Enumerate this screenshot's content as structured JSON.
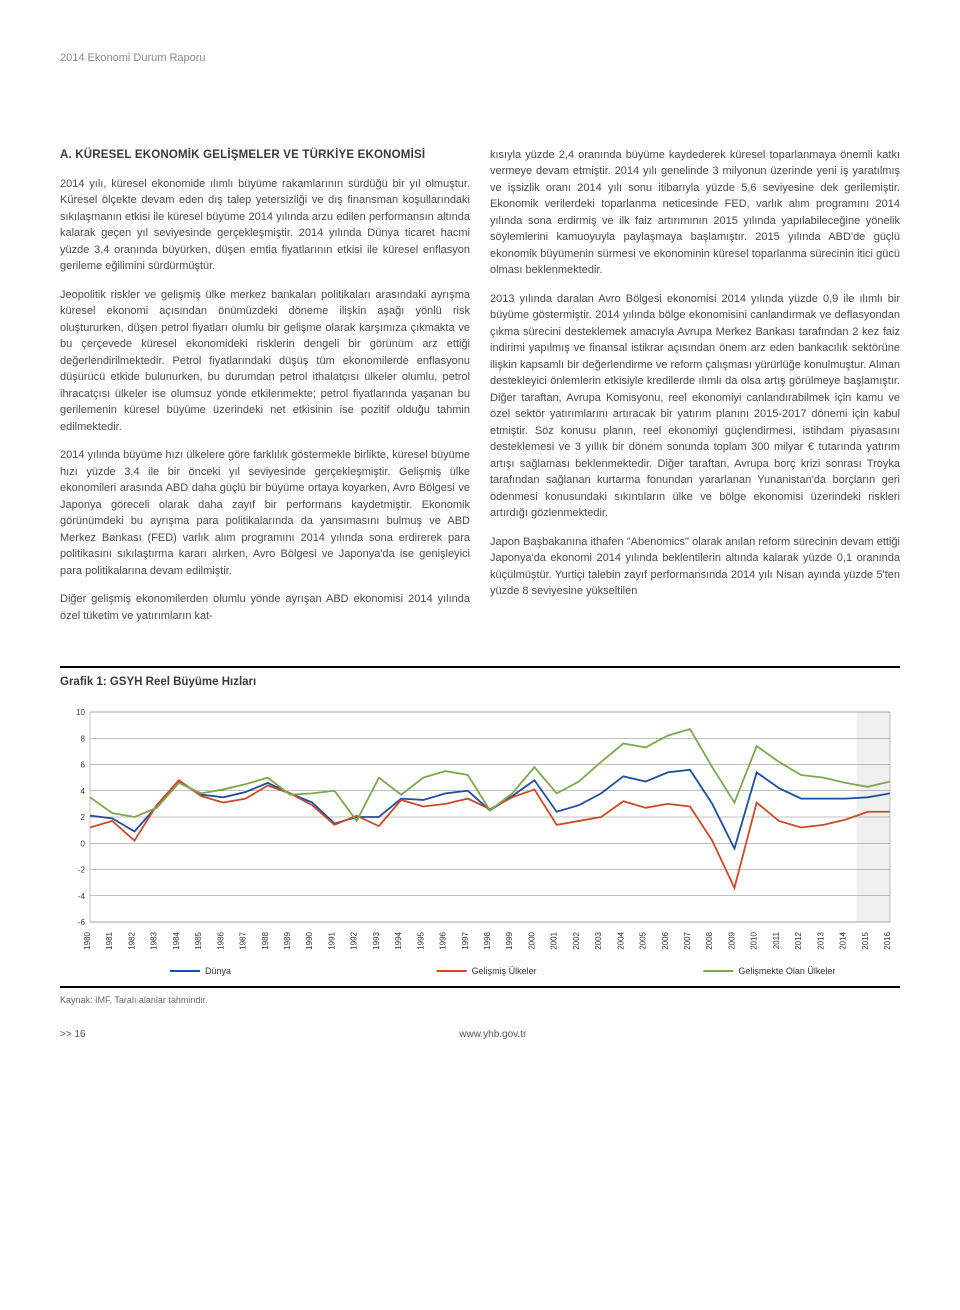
{
  "header": "2014 Ekonomi Durum Raporu",
  "sectionTitle": "A. KÜRESEL EKONOMİK GELİŞMELER VE TÜRKİYE EKONOMİSİ",
  "leftCol": [
    "2014 yılı, küresel ekonomide ılımlı büyüme rakamlarının sürdüğü bir yıl olmuştur. Küresel ölçekte devam eden dış talep yetersizliği ve dış finansman koşullarındaki sıkılaşmanın etkisi ile küresel büyüme 2014 yılında arzu edilen performansın altında kalarak geçen yıl seviyesinde gerçekleşmiştir. 2014 yılında Dünya ticaret hacmi yüzde 3,4 oranında büyürken, düşen emtia fiyatlarının etkisi ile küresel enflasyon gerileme eğilimini sürdürmüştür.",
    "Jeopolitik riskler ve gelişmiş ülke merkez bankaları politikaları arasındaki ayrışma küresel ekonomi açısından önümüzdeki döneme ilişkin aşağı yönlü risk oluştururken, düşen petrol fiyatları olumlu bir gelişme olarak karşımıza çıkmakta ve bu çerçevede küresel ekonomideki risklerin dengeli bir görünüm arz ettiği değerlendirilmektedir. Petrol fiyatlarındaki düşüş tüm ekonomilerde enflasyonu düşürücü etkide bulunurken, bu durumdan petrol ithalatçısı ülkeler olumlu, petrol ihracatçısı ülkeler ise olumsuz yönde etkilenmekte; petrol fiyatlarında yaşanan bu gerilemenin küresel büyüme üzerindeki net etkisinin ise pozitif olduğu tahmin edilmektedir.",
    "2014 yılında büyüme hızı ülkelere göre farklılık göstermekle birlikte, küresel büyüme hızı yüzde 3,4 ile bir önceki yıl seviyesinde gerçekleşmiştir. Gelişmiş ülke ekonomileri arasında ABD daha güçlü bir büyüme ortaya koyarken, Avro Bölgesi ve Japonya göreceli olarak daha zayıf bir performans kaydetmiştir. Ekonomik görünümdeki bu ayrışma para politikalarında da yansımasını bulmuş ve ABD Merkez Bankası (FED) varlık alım programını 2014 yılında sona erdirerek para politikasını sıkılaştırma kararı alırken, Avro Bölgesi ve Japonya'da ise genişleyici para politikalarına devam edilmiştir.",
    "Diğer gelişmiş ekonomilerden olumlu yönde ayrışan ABD ekonomisi 2014 yılında özel tüketim ve yatırımların kat-"
  ],
  "rightCol": [
    "kısıyla yüzde 2,4 oranında büyüme kaydederek küresel toparlanmaya önemli katkı vermeye devam etmiştir. 2014 yılı genelinde 3 milyonun üzerinde yeni iş yaratılmış ve işsizlik oranı 2014 yılı sonu itibarıyla yüzde 5,6 seviyesine dek gerilemiştir. Ekonomik verilerdeki toparlanma neticesinde FED, varlık alım programını 2014 yılında sona erdirmiş ve ilk faiz artırımının 2015 yılında yapılabileceğine yönelik söylemlerini kamuoyuyla paylaşmaya başlamıştır. 2015 yılında ABD'de güçlü ekonomik büyümenin sürmesi ve ekonominin küresel toparlanma sürecinin itici gücü olması beklenmektedir.",
    "2013 yılında daralan Avro Bölgesi ekonomisi 2014 yılında yüzde 0,9 ile ılımlı bir büyüme göstermiştir. 2014 yılında bölge ekonomisini canlandırmak ve deflasyondan çıkma sürecini desteklemek amacıyla Avrupa Merkez Bankası tarafından 2 kez faiz indirimi yapılmış ve finansal istikrar açısından önem arz eden bankacılık sektörüne ilişkin kapsamlı bir değerlendirme ve reform çalışması yürürlüğe konulmuştur. Alınan destekleyici önlemlerin etkisiyle kredilerde ılımlı da olsa artış görülmeye başlamıştır. Diğer taraftan, Avrupa Komisyonu, reel ekonomiyi canlandırabilmek için kamu ve özel sektör yatırımlarını artıracak bir yatırım planını 2015-2017 dönemi için kabul etmiştir. Söz konusu planın, reel ekonomiyi güçlendirmesi, istihdam piyasasını desteklemesi ve 3 yıllık bir dönem sonunda toplam 300 milyar € tutarında yatırım artışı sağlaması beklenmektedir. Diğer taraftan, Avrupa borç krizi sonrası Troyka tarafından sağlanan kurtarma fonundan yararlanan Yunanistan'da borçların geri ödenmesi konusundaki sıkıntıların ülke ve bölge ekonomisi üzerindeki riskleri artırdığı gözlenmektedir.",
    "Japon Başbakanına ithafen \"Abenomics\" olarak anılan reform sürecinin devam ettiği Japonya'da ekonomi 2014 yılında beklentilerin altında kalarak yüzde 0,1 oranında küçülmüştür. Yurtiçi talebin zayıf performansında 2014 yılı Nisan ayında yüzde 5'ten yüzde 8 seviyesine yükseltilen"
  ],
  "chart": {
    "title": "Grafik 1: GSYH Reel Büyüme Hızları",
    "type": "line",
    "years": [
      "1980",
      "1981",
      "1982",
      "1983",
      "1984",
      "1985",
      "1986",
      "1987",
      "1988",
      "1989",
      "1990",
      "1991",
      "1992",
      "1993",
      "1994",
      "1995",
      "1996",
      "1997",
      "1998",
      "1999",
      "2000",
      "2001",
      "2002",
      "2003",
      "2004",
      "2005",
      "2006",
      "2007",
      "2008",
      "2009",
      "2010",
      "2011",
      "2012",
      "2013",
      "2014",
      "2015",
      "2016"
    ],
    "ylim": [
      -6,
      10
    ],
    "ytick_step": 2,
    "forecast_start_index": 35,
    "series": [
      {
        "name": "Dünya",
        "label": "Dünya",
        "color": "#1f4e9c",
        "values": [
          2.1,
          1.9,
          0.9,
          2.8,
          4.7,
          3.7,
          3.5,
          3.9,
          4.6,
          3.8,
          3.1,
          1.5,
          2.0,
          2.0,
          3.4,
          3.3,
          3.8,
          4.0,
          2.5,
          3.6,
          4.8,
          2.4,
          2.9,
          3.8,
          5.1,
          4.7,
          5.4,
          5.6,
          3.0,
          -0.4,
          5.4,
          4.2,
          3.4,
          3.4,
          3.4,
          3.5,
          3.8
        ]
      },
      {
        "name": "Gelişmiş Ülkeler",
        "label": "Gelişmiş Ülkeler",
        "color": "#c94b2a",
        "values": [
          1.2,
          1.7,
          0.2,
          2.9,
          4.8,
          3.6,
          3.1,
          3.4,
          4.4,
          3.8,
          2.9,
          1.4,
          2.1,
          1.3,
          3.3,
          2.8,
          3.0,
          3.4,
          2.6,
          3.5,
          4.1,
          1.4,
          1.7,
          2.0,
          3.2,
          2.7,
          3.0,
          2.8,
          0.2,
          -3.4,
          3.1,
          1.7,
          1.2,
          1.4,
          1.8,
          2.4,
          2.4
        ]
      },
      {
        "name": "Gelişmekte Olan Ülkeler",
        "label": "Gelişmekte Olan Ülkeler",
        "color": "#7ba84f",
        "values": [
          3.5,
          2.3,
          2.0,
          2.7,
          4.6,
          3.8,
          4.1,
          4.5,
          5.0,
          3.7,
          3.8,
          4.0,
          1.7,
          5.0,
          3.7,
          5.0,
          5.5,
          5.2,
          2.5,
          3.8,
          5.8,
          3.8,
          4.7,
          6.2,
          7.6,
          7.3,
          8.2,
          8.7,
          5.8,
          3.1,
          7.4,
          6.2,
          5.2,
          5.0,
          4.6,
          4.3,
          4.7
        ]
      }
    ],
    "grid_color": "#808080",
    "axis_color": "#000000",
    "label_fontsize": 8,
    "background_color": "#ffffff",
    "forecast_fill": "#f0f0f0"
  },
  "source": "Kaynak: IMF. Taralı alanlar tahmindir.",
  "pageNum": ">> 16",
  "siteUrl": "www.yhb.gov.tr"
}
